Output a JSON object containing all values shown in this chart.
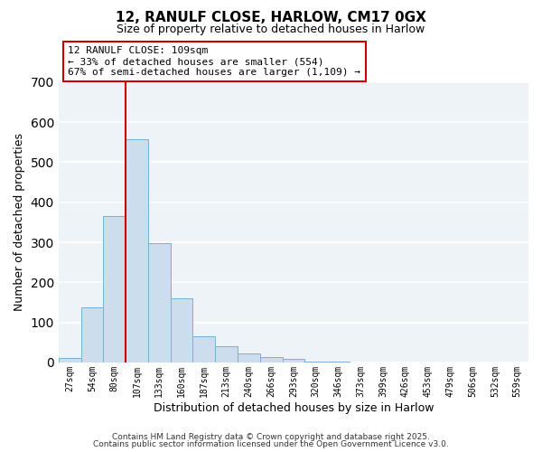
{
  "title1": "12, RANULF CLOSE, HARLOW, CM17 0GX",
  "title2": "Size of property relative to detached houses in Harlow",
  "xlabel": "Distribution of detached houses by size in Harlow",
  "ylabel": "Number of detached properties",
  "bar_color": "#ccdded",
  "bar_edge_color": "#7bafd4",
  "categories": [
    "27sqm",
    "54sqm",
    "80sqm",
    "107sqm",
    "133sqm",
    "160sqm",
    "187sqm",
    "213sqm",
    "240sqm",
    "266sqm",
    "293sqm",
    "320sqm",
    "346sqm",
    "373sqm",
    "399sqm",
    "426sqm",
    "453sqm",
    "479sqm",
    "506sqm",
    "532sqm",
    "559sqm"
  ],
  "values": [
    10,
    138,
    365,
    557,
    298,
    161,
    66,
    40,
    23,
    13,
    9,
    1,
    1,
    0,
    0,
    0,
    0,
    0,
    0,
    0,
    0
  ],
  "vline_index": 3,
  "vline_color": "#cc0000",
  "annotation_line1": "12 RANULF CLOSE: 109sqm",
  "annotation_line2": "← 33% of detached houses are smaller (554)",
  "annotation_line3": "67% of semi-detached houses are larger (1,109) →",
  "ylim": [
    0,
    700
  ],
  "yticks": [
    0,
    100,
    200,
    300,
    400,
    500,
    600,
    700
  ],
  "footer1": "Contains HM Land Registry data © Crown copyright and database right 2025.",
  "footer2": "Contains public sector information licensed under the Open Government Licence v3.0.",
  "background_color": "#eef3f8",
  "grid_color": "#ffffff",
  "figwidth": 6.0,
  "figheight": 5.0
}
